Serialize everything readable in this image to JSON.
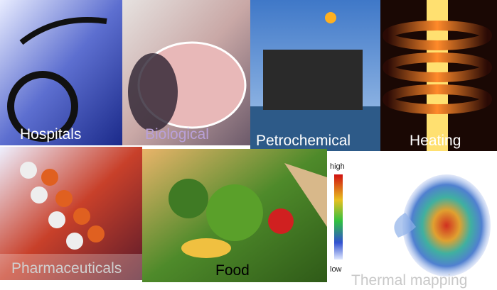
{
  "tiles": [
    {
      "label": "Hospitals"
    },
    {
      "label": "Biological"
    },
    {
      "label": "Petrochemical"
    },
    {
      "label": "Heating"
    },
    {
      "label": "Pharmaceuticals"
    },
    {
      "label": "Food"
    },
    {
      "label": "Thermal mapping"
    }
  ],
  "colorbar": {
    "high": "high",
    "low": "low"
  }
}
